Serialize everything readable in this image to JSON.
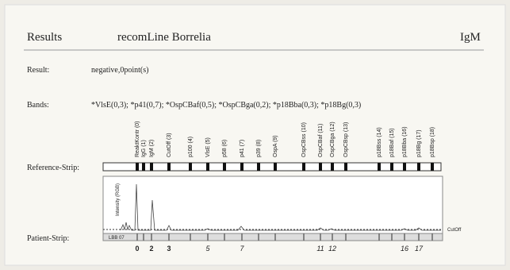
{
  "header": {
    "title": "Results",
    "product": "recomLine Borrelia",
    "class": "IgM"
  },
  "result": {
    "label": "Result:",
    "value": "negative,0point(s)"
  },
  "bands": {
    "label": "Bands:",
    "value": "*VlsE(0,3); *p41(0,7); *OspCBaf(0,5); *OspCBga(0,2); *p18Bba(0,3); *p18Bg(0,3)"
  },
  "reference_strip": {
    "label": "Reference-Strip:",
    "band_labels": [
      "ReaktKontr (0)",
      "IgG (1)",
      "IgM (2)",
      "CutOff (3)",
      "p100 (4)",
      "VlsE (5)",
      "p58 (6)",
      "p41 (7)",
      "p39 (8)",
      "OspA (9)",
      "OspCBss (10)",
      "OspCBaf (11)",
      "OspCBga (12)",
      "OspCBsp (13)",
      "p18Bss (14)",
      "p18Baf (15)",
      "p18Bba (16)",
      "p18Bg (17)",
      "p18Bsp (18)"
    ]
  },
  "patient_strip": {
    "label": "Patient-Strip:",
    "strip_id": "LBB 07",
    "y_axis_label": "Intensity (RGB)",
    "cutoff_label": "CutOff",
    "detected_bands": [
      0,
      2,
      3,
      5,
      7,
      11,
      12,
      16,
      17
    ]
  }
}
